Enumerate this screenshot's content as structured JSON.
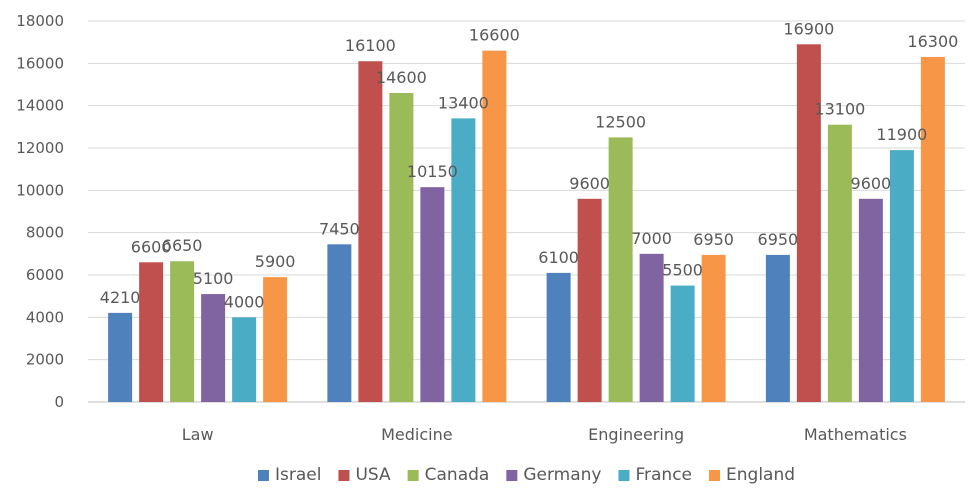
{
  "chart_data": {
    "type": "bar",
    "title": "",
    "xlabel": "",
    "ylabel": "",
    "ylim": [
      0,
      18000
    ],
    "yticks": [
      0,
      2000,
      4000,
      6000,
      8000,
      10000,
      12000,
      14000,
      16000,
      18000
    ],
    "grid": true,
    "legend_position": "bottom",
    "categories": [
      "Law",
      "Medicine",
      "Engineering",
      "Mathematics"
    ],
    "series": [
      {
        "name": "Israel",
        "color": "#4F81BD",
        "values": [
          4210,
          7450,
          6100,
          6950
        ]
      },
      {
        "name": "USA",
        "color": "#C0504D",
        "values": [
          6600,
          16100,
          9600,
          16900
        ]
      },
      {
        "name": "Canada",
        "color": "#9BBB59",
        "values": [
          6650,
          14600,
          12500,
          13100
        ]
      },
      {
        "name": "Germany",
        "color": "#8064A2",
        "values": [
          5100,
          10150,
          7000,
          9600
        ]
      },
      {
        "name": "France",
        "color": "#4BACC6",
        "values": [
          4000,
          13400,
          5500,
          11900
        ]
      },
      {
        "name": "England",
        "color": "#F79646",
        "values": [
          5900,
          16600,
          6950,
          16300
        ]
      }
    ]
  }
}
